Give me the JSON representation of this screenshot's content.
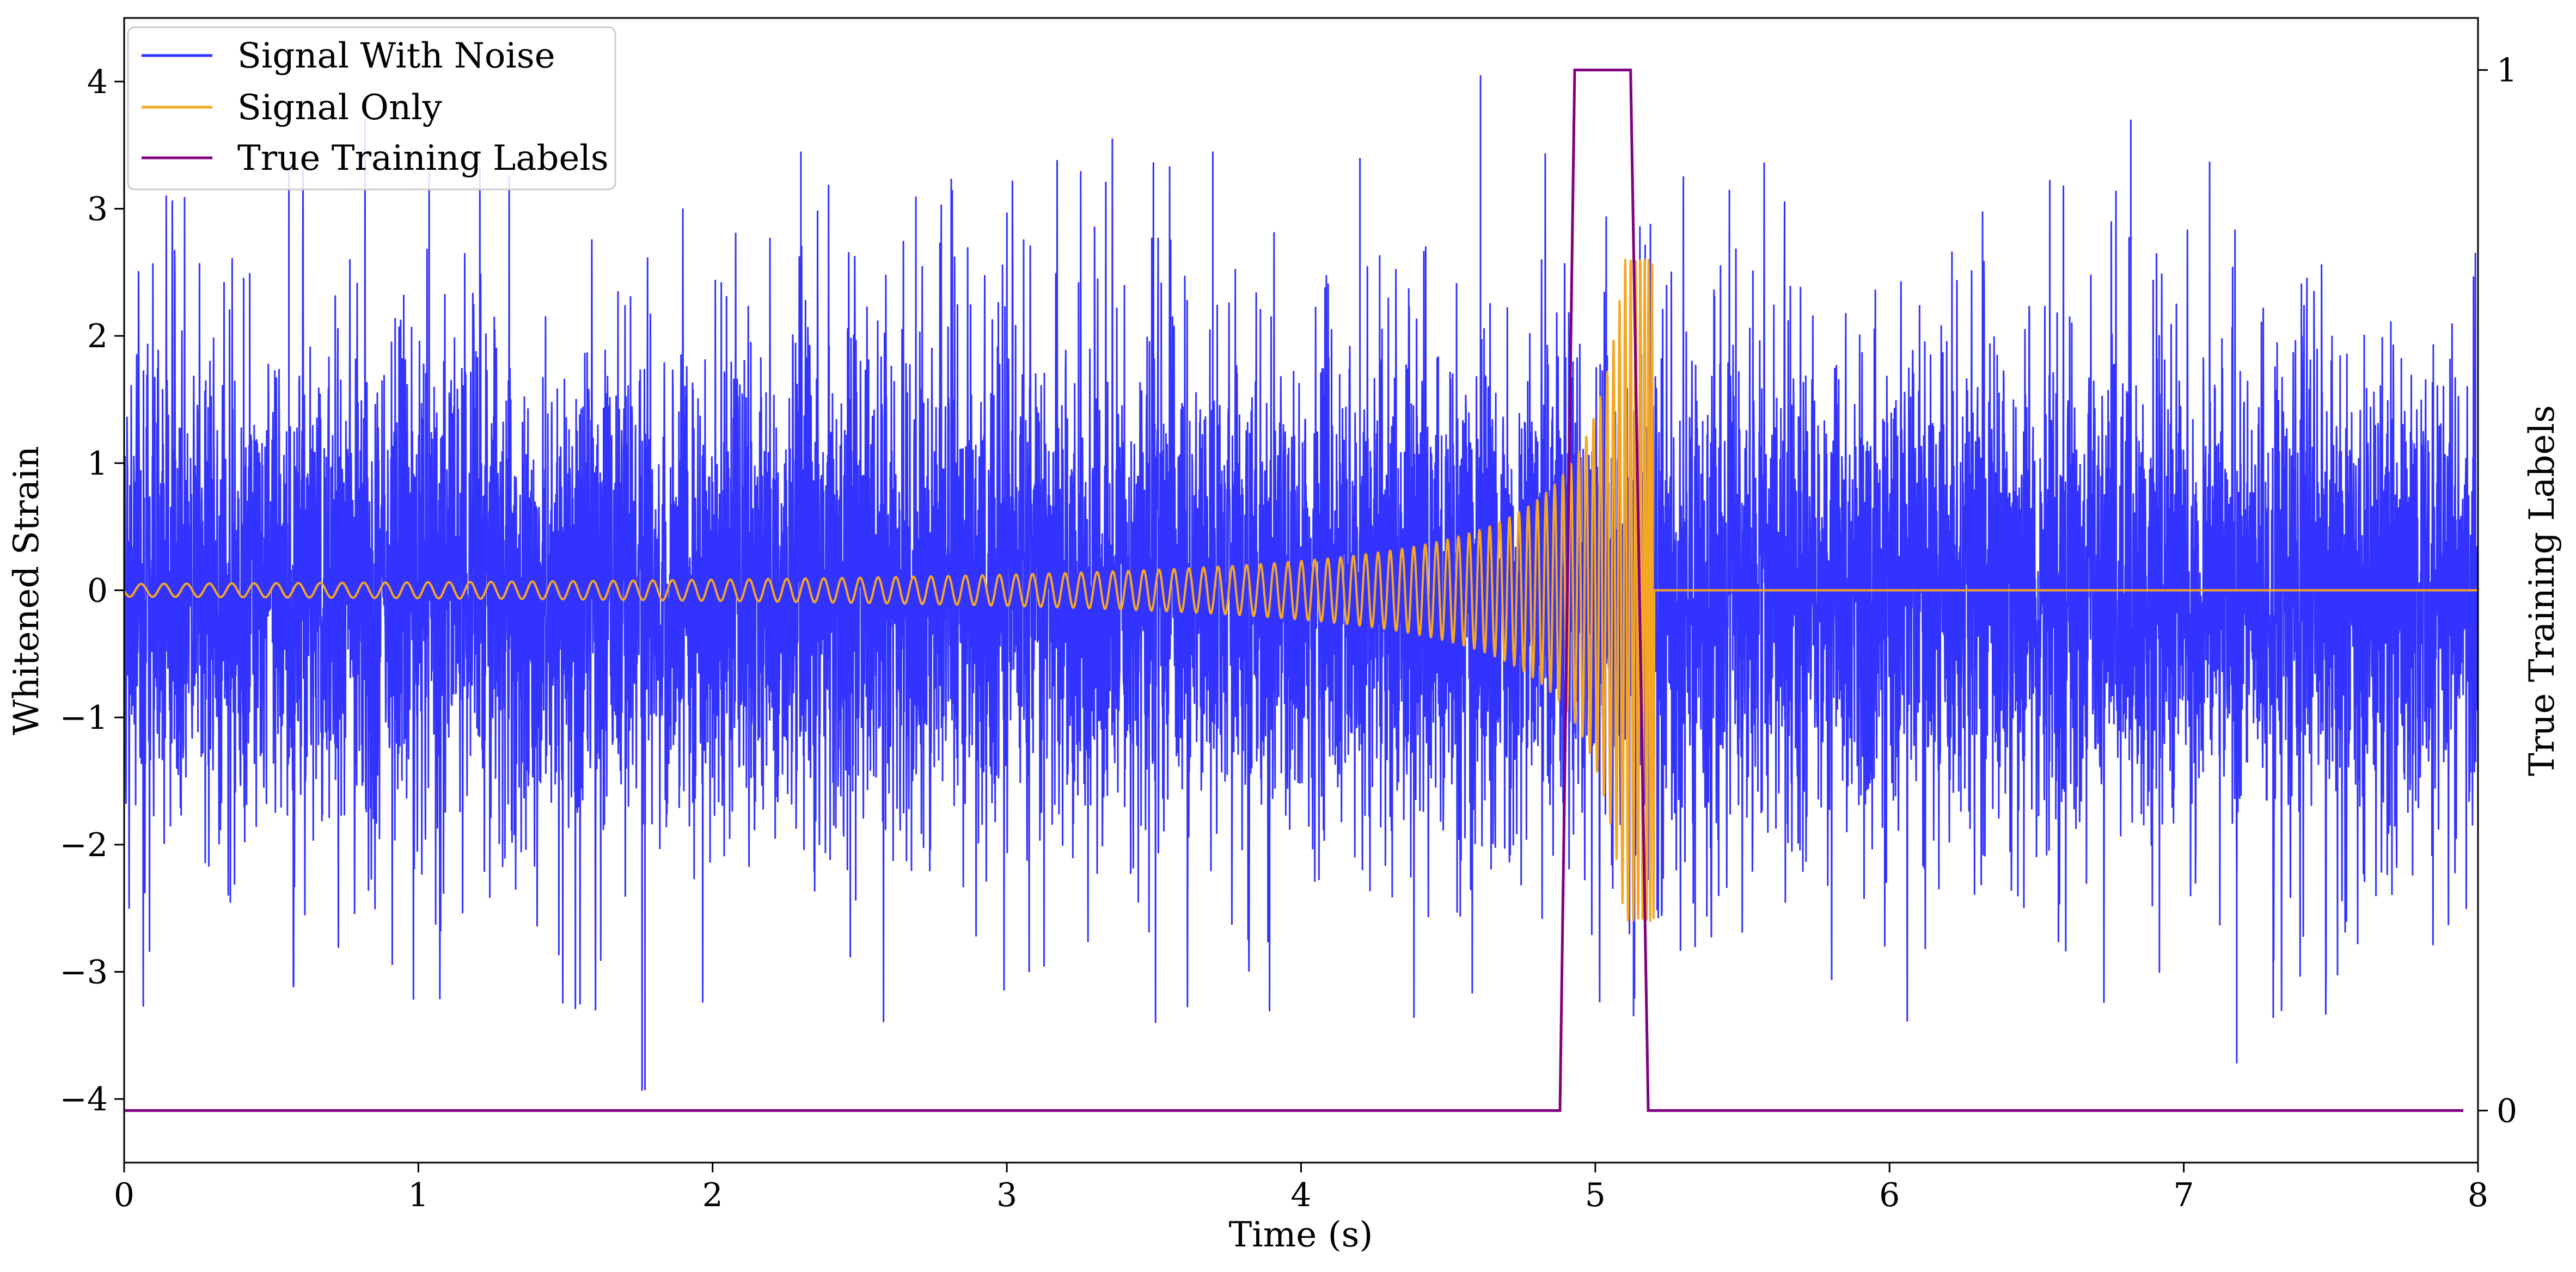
{
  "chart_data": {
    "type": "line",
    "title": "",
    "xlabel": "Time (s)",
    "ylabel": "Whitened Strain",
    "y2label": "True Training Labels",
    "xlim": [
      0,
      8
    ],
    "ylim": [
      -4.5,
      4.5
    ],
    "y2lim": [
      -0.05,
      1.05
    ],
    "xticks": [
      0,
      1,
      2,
      3,
      4,
      5,
      6,
      7,
      8
    ],
    "xtick_labels": [
      "0",
      "1",
      "2",
      "3",
      "4",
      "5",
      "6",
      "7",
      "8"
    ],
    "yticks": [
      -4,
      -3,
      -2,
      -1,
      0,
      1,
      2,
      3,
      4
    ],
    "ytick_labels": [
      "−4",
      "−3",
      "−2",
      "−1",
      "0",
      "1",
      "2",
      "3",
      "4"
    ],
    "y2ticks": [
      0,
      1
    ],
    "y2tick_labels": [
      "0",
      "1"
    ],
    "grid": false,
    "legend_position": "top-left",
    "series": [
      {
        "name": "Signal With Noise",
        "color": "#3333ff",
        "axis": "left",
        "description_values": {
          "kind": "noise",
          "x_range": [
            0,
            8
          ],
          "typical_range": [
            -2.5,
            2.5
          ],
          "extreme_max": 4.05,
          "extreme_min": -3.93
        }
      },
      {
        "name": "Signal Only",
        "color": "#f5a623",
        "axis": "left",
        "description_values": {
          "kind": "chirp",
          "x_range": [
            0,
            8
          ],
          "start_amplitude": 0.05,
          "peak_amplitude": 2.6,
          "peak_time": 5.18,
          "end_time": 5.2
        }
      },
      {
        "name": "True Training Labels",
        "color": "#800080",
        "axis": "right",
        "x": [
          0,
          4.88,
          4.93,
          5.12,
          5.18,
          7.95
        ],
        "y": [
          0,
          0,
          1,
          1,
          0,
          0
        ]
      }
    ]
  }
}
